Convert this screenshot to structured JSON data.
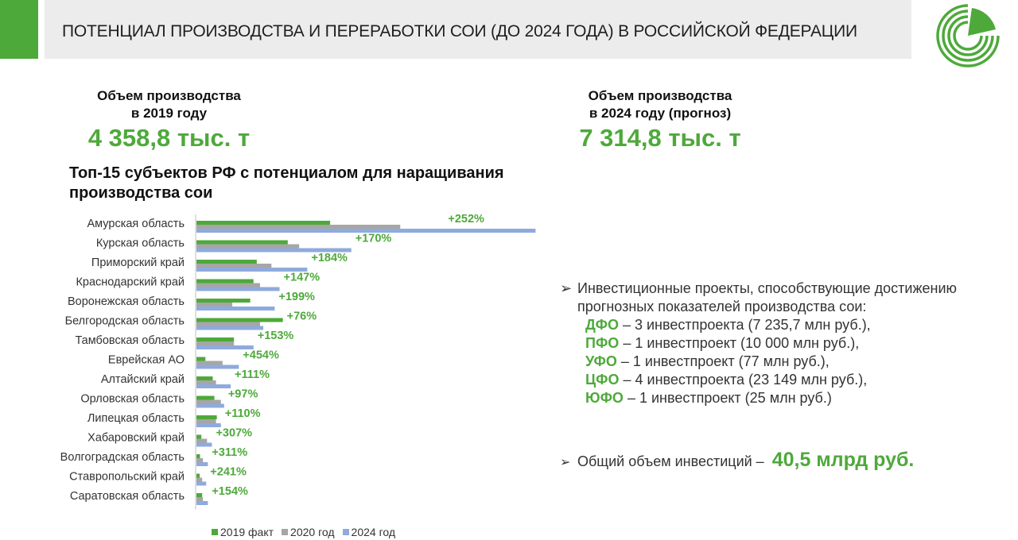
{
  "header": {
    "title": "ПОТЕНЦИАЛ ПРОИЗВОДСТВА И ПЕРЕРАБОТКИ СОИ (ДО 2024 ГОДА) В РОССИЙСКОЙ ФЕДЕРАЦИИ",
    "logo": "green-circular-logo"
  },
  "stats": {
    "s2019": {
      "label_line1": "Объем производства",
      "label_line2": "в 2019 году",
      "value": "4 358,8 тыс. т"
    },
    "s2024": {
      "label_line1": "Объем производства",
      "label_line2": "в 2024 году (прогноз)",
      "value": "7 314,8 тыс. т"
    }
  },
  "colors": {
    "green": "#4ea93b",
    "gray": "#a6a6a6",
    "blue": "#8faadc"
  },
  "chart_data": {
    "type": "bar",
    "orientation": "horizontal",
    "title": "Топ-15 субъектов РФ с потенциалом для наращивания производства сои",
    "categories": [
      "Амурская область",
      "Курская область",
      "Приморский край",
      "Краснодарский край",
      "Воронежская область",
      "Белгородская область",
      "Тамбовская область",
      "Еврейская АО",
      "Алтайский край",
      "Орловская область",
      "Липецкая область",
      "Хабаровский край",
      "Волгоградская область",
      "Ставропольский край",
      "Саратовская область"
    ],
    "series": [
      {
        "name": "2019 факт",
        "color": "#4ea93b",
        "values": [
          820,
          560,
          370,
          350,
          330,
          530,
          230,
          55,
          100,
          110,
          125,
          30,
          22,
          20,
          35
        ]
      },
      {
        "name": "2020 год",
        "color": "#a6a6a6",
        "values": [
          1250,
          630,
          460,
          390,
          220,
          390,
          230,
          160,
          120,
          150,
          120,
          65,
          40,
          35,
          40
        ]
      },
      {
        "name": "2024 год",
        "color": "#8faadc",
        "values": [
          2080,
          950,
          680,
          510,
          480,
          410,
          350,
          260,
          210,
          170,
          150,
          95,
          70,
          60,
          70
        ]
      }
    ],
    "annotations": [
      "+252%",
      "+170%",
      "+184%",
      "+147%",
      "+199%",
      "+76%",
      "+153%",
      "+454%",
      "+111%",
      "+97%",
      "+110%",
      "+307%",
      "+311%",
      "+241%",
      "+154%"
    ],
    "legend": "bottom",
    "grid": false
  },
  "investment": {
    "bullet": "➢",
    "heading": "Инвестиционные проекты, способствующие достижению прогнозных показателей производства сои:",
    "lines": [
      {
        "district": "ДФО",
        "text": " – 3 инвестпроекта (7 235,7 млн руб.),"
      },
      {
        "district": "ПФО",
        "text": " – 1 инвестпроект (10 000 млн руб.),"
      },
      {
        "district": "УФО",
        "text": " – 1 инвестпроект (77 млн руб.),"
      },
      {
        "district": "ЦФО",
        "text": " – 4 инвестпроекта (23 149 млн руб.),"
      },
      {
        "district": "ЮФО",
        "text": " – 1 инвестпроект (25 млн руб.)"
      }
    ],
    "total_text": "Общий объем инвестиций –",
    "total_value": "40,5 млрд руб."
  }
}
